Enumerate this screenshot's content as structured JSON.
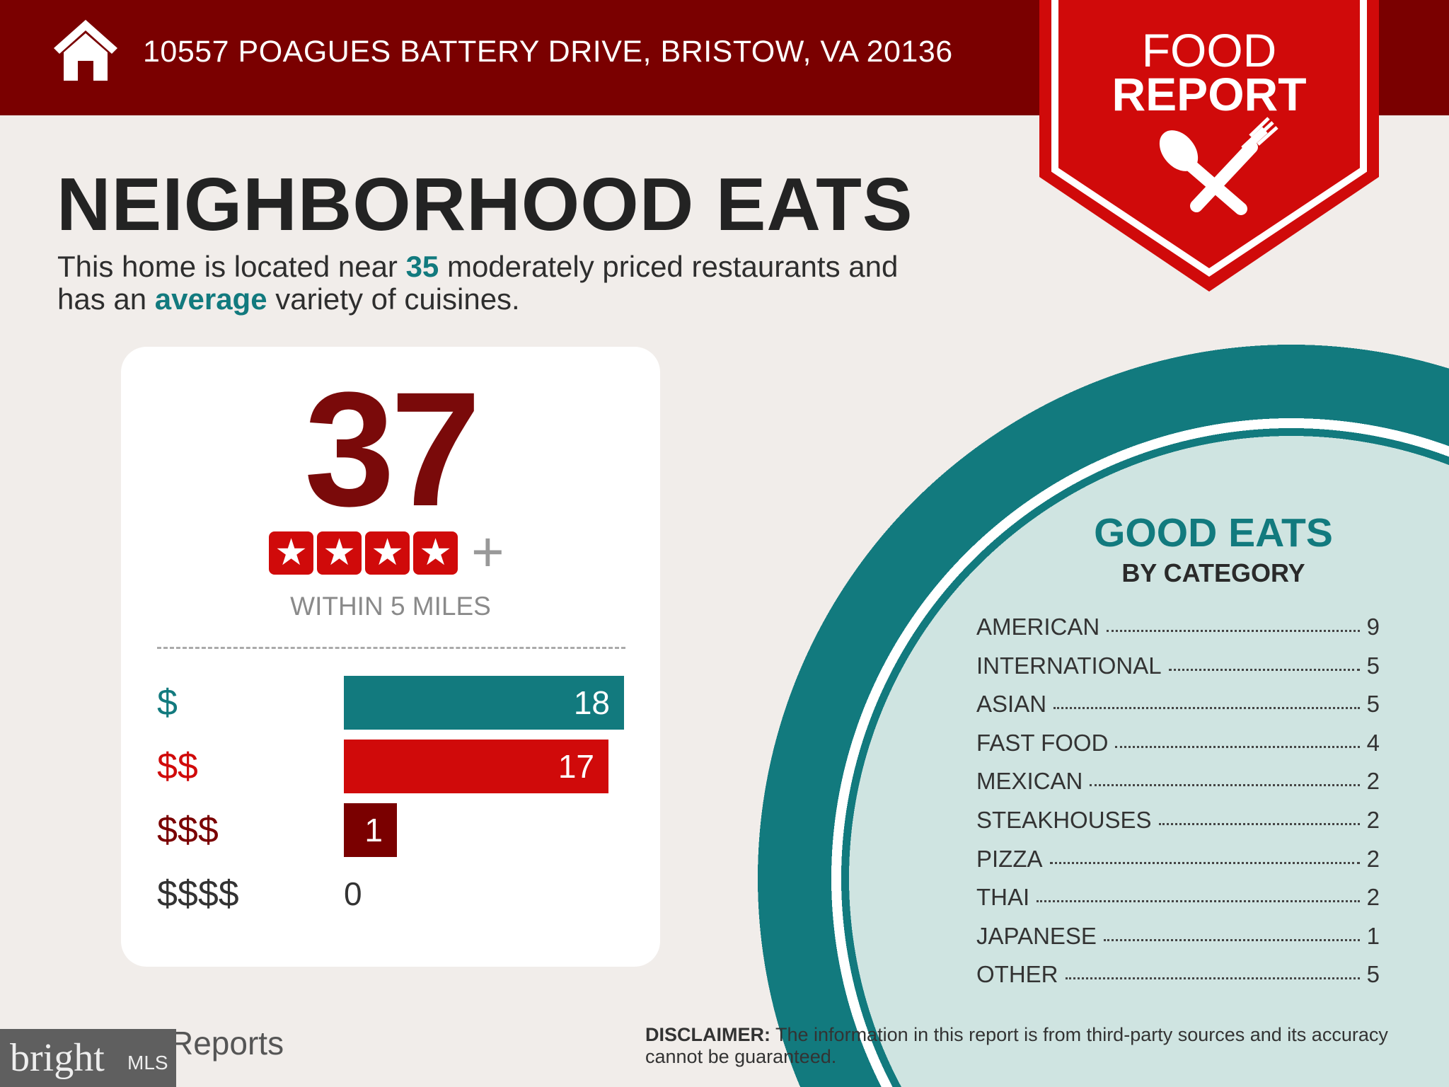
{
  "header": {
    "address": "10557 POAGUES BATTERY DRIVE, BRISTOW, VA 20136",
    "icon": "home-icon"
  },
  "badge": {
    "line1": "FOOD",
    "line2": "REPORT",
    "icon": "spoon-fork-icon"
  },
  "title": "NEIGHBORHOOD EATS",
  "summary": {
    "p1": "This home is located near ",
    "count": "35",
    "p2": " moderately priced restaurants and",
    "p3": "has an ",
    "variety": "average",
    "p4": " variety of cuisines."
  },
  "card": {
    "total": "37",
    "stars": 4,
    "plus": "+",
    "within": "WITHIN 5 MILES",
    "price_levels": [
      {
        "label": "$",
        "value": 18,
        "display": "18",
        "color": "#127a7e"
      },
      {
        "label": "$$",
        "value": 17,
        "display": "17",
        "color": "#d00a0a"
      },
      {
        "label": "$$$",
        "value": 1,
        "display": "1",
        "color": "#7a0000"
      },
      {
        "label": "$$$$",
        "value": 0,
        "display": "0",
        "color": "#333333"
      }
    ]
  },
  "categories": {
    "title": "GOOD EATS",
    "subtitle": "BY CATEGORY",
    "items": [
      {
        "name": "AMERICAN",
        "count": "9"
      },
      {
        "name": "INTERNATIONAL",
        "count": "5"
      },
      {
        "name": "ASIAN",
        "count": "5"
      },
      {
        "name": "FAST FOOD",
        "count": "4"
      },
      {
        "name": "MEXICAN",
        "count": "2"
      },
      {
        "name": "STEAKHOUSES",
        "count": "2"
      },
      {
        "name": "PIZZA",
        "count": "2"
      },
      {
        "name": "THAI",
        "count": "2"
      },
      {
        "name": "JAPANESE",
        "count": "1"
      },
      {
        "name": "OTHER",
        "count": "5"
      }
    ]
  },
  "footer": {
    "reports": "Reports",
    "bright": "bright",
    "mls": "MLS",
    "disclaimer_label": "DISCLAIMER:",
    "disclaimer": " The information in this report is from third-party sources and its accuracy cannot be guaranteed."
  },
  "colors": {
    "teal": "#127a7e",
    "red": "#d00a0a",
    "dark_red": "#7a0000",
    "background": "#f1edea"
  }
}
